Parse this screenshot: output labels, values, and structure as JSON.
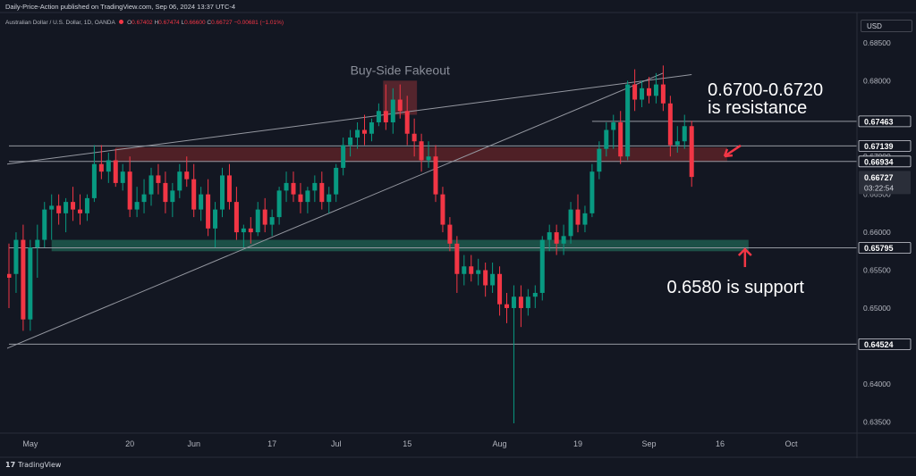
{
  "header": {
    "publish_line": "Daily-Price-Action published on TradingView.com, Sep 06, 2024 13:37 UTC-4"
  },
  "legend": {
    "symbol": "Australian Dollar / U.S. Dollar, 1D, OANDA",
    "open_label": "O",
    "open": "0.67402",
    "high_label": "H",
    "high": "0.67474",
    "low_label": "L",
    "low": "0.66600",
    "close_label": "C",
    "close": "0.66727",
    "change": "−0.00681 (−1.01%)"
  },
  "currency": "USD",
  "footer": {
    "brand": "TradingView"
  },
  "colors": {
    "background": "#131722",
    "up": "#089981",
    "down": "#f23645",
    "resistance_zone": "#5b2227",
    "support_zone": "#1f5b4e",
    "text": "#d1d4dc"
  },
  "chart_data": {
    "type": "candlestick",
    "y_axis": {
      "ylim": [
        0.6335,
        0.6864
      ],
      "ticks": [
        "0.68500",
        "0.68000",
        "0.67500",
        "0.67000",
        "0.66500",
        "0.66000",
        "0.65500",
        "0.65000",
        "0.64500",
        "0.64000",
        "0.63500"
      ],
      "tick_values": [
        0.685,
        0.68,
        0.675,
        0.67,
        0.665,
        0.66,
        0.655,
        0.65,
        0.645,
        0.64,
        0.635
      ]
    },
    "x_axis": {
      "labels": [
        {
          "label": "May",
          "index": 3
        },
        {
          "label": "20",
          "index": 17
        },
        {
          "label": "Jun",
          "index": 26
        },
        {
          "label": "17",
          "index": 37
        },
        {
          "label": "Jul",
          "index": 46
        },
        {
          "label": "15",
          "index": 56
        },
        {
          "label": "Aug",
          "index": 69
        },
        {
          "label": "19",
          "index": 80
        },
        {
          "label": "Sep",
          "index": 90
        },
        {
          "label": "16",
          "index": 100
        },
        {
          "label": "Oct",
          "index": 110
        }
      ]
    },
    "candles": [
      {
        "o": 0.6545,
        "h": 0.6585,
        "l": 0.65,
        "c": 0.654
      },
      {
        "o": 0.6545,
        "h": 0.66,
        "l": 0.652,
        "c": 0.659
      },
      {
        "o": 0.659,
        "h": 0.661,
        "l": 0.647,
        "c": 0.6485
      },
      {
        "o": 0.6485,
        "h": 0.659,
        "l": 0.647,
        "c": 0.658
      },
      {
        "o": 0.658,
        "h": 0.661,
        "l": 0.654,
        "c": 0.659
      },
      {
        "o": 0.659,
        "h": 0.664,
        "l": 0.658,
        "c": 0.663
      },
      {
        "o": 0.663,
        "h": 0.665,
        "l": 0.659,
        "c": 0.6635
      },
      {
        "o": 0.6635,
        "h": 0.665,
        "l": 0.661,
        "c": 0.6625
      },
      {
        "o": 0.6625,
        "h": 0.6645,
        "l": 0.66,
        "c": 0.664
      },
      {
        "o": 0.664,
        "h": 0.666,
        "l": 0.6615,
        "c": 0.663
      },
      {
        "o": 0.663,
        "h": 0.665,
        "l": 0.661,
        "c": 0.6625
      },
      {
        "o": 0.6625,
        "h": 0.665,
        "l": 0.6615,
        "c": 0.6645
      },
      {
        "o": 0.6645,
        "h": 0.6715,
        "l": 0.664,
        "c": 0.669
      },
      {
        "o": 0.669,
        "h": 0.6715,
        "l": 0.667,
        "c": 0.668
      },
      {
        "o": 0.668,
        "h": 0.6705,
        "l": 0.6665,
        "c": 0.6695
      },
      {
        "o": 0.6695,
        "h": 0.671,
        "l": 0.666,
        "c": 0.6665
      },
      {
        "o": 0.6665,
        "h": 0.669,
        "l": 0.6655,
        "c": 0.668
      },
      {
        "o": 0.668,
        "h": 0.67,
        "l": 0.662,
        "c": 0.663
      },
      {
        "o": 0.663,
        "h": 0.666,
        "l": 0.662,
        "c": 0.664
      },
      {
        "o": 0.664,
        "h": 0.667,
        "l": 0.6625,
        "c": 0.665
      },
      {
        "o": 0.665,
        "h": 0.6685,
        "l": 0.6635,
        "c": 0.6675
      },
      {
        "o": 0.6675,
        "h": 0.669,
        "l": 0.665,
        "c": 0.6665
      },
      {
        "o": 0.6665,
        "h": 0.668,
        "l": 0.6625,
        "c": 0.664
      },
      {
        "o": 0.664,
        "h": 0.6665,
        "l": 0.662,
        "c": 0.6655
      },
      {
        "o": 0.6655,
        "h": 0.669,
        "l": 0.6645,
        "c": 0.668
      },
      {
        "o": 0.668,
        "h": 0.67,
        "l": 0.666,
        "c": 0.667
      },
      {
        "o": 0.667,
        "h": 0.669,
        "l": 0.662,
        "c": 0.663
      },
      {
        "o": 0.663,
        "h": 0.666,
        "l": 0.6615,
        "c": 0.665
      },
      {
        "o": 0.665,
        "h": 0.667,
        "l": 0.6595,
        "c": 0.6605
      },
      {
        "o": 0.6605,
        "h": 0.664,
        "l": 0.658,
        "c": 0.663
      },
      {
        "o": 0.663,
        "h": 0.6685,
        "l": 0.662,
        "c": 0.6675
      },
      {
        "o": 0.6675,
        "h": 0.669,
        "l": 0.663,
        "c": 0.664
      },
      {
        "o": 0.664,
        "h": 0.666,
        "l": 0.659,
        "c": 0.66
      },
      {
        "o": 0.66,
        "h": 0.661,
        "l": 0.658,
        "c": 0.6605
      },
      {
        "o": 0.6605,
        "h": 0.662,
        "l": 0.6585,
        "c": 0.66
      },
      {
        "o": 0.66,
        "h": 0.664,
        "l": 0.6595,
        "c": 0.663
      },
      {
        "o": 0.663,
        "h": 0.6645,
        "l": 0.66,
        "c": 0.661
      },
      {
        "o": 0.661,
        "h": 0.663,
        "l": 0.6595,
        "c": 0.662
      },
      {
        "o": 0.662,
        "h": 0.666,
        "l": 0.661,
        "c": 0.6655
      },
      {
        "o": 0.6655,
        "h": 0.668,
        "l": 0.664,
        "c": 0.6665
      },
      {
        "o": 0.6665,
        "h": 0.668,
        "l": 0.664,
        "c": 0.665
      },
      {
        "o": 0.665,
        "h": 0.6665,
        "l": 0.6625,
        "c": 0.664
      },
      {
        "o": 0.664,
        "h": 0.666,
        "l": 0.6625,
        "c": 0.6655
      },
      {
        "o": 0.6655,
        "h": 0.6675,
        "l": 0.664,
        "c": 0.6665
      },
      {
        "o": 0.6665,
        "h": 0.668,
        "l": 0.663,
        "c": 0.664
      },
      {
        "o": 0.664,
        "h": 0.666,
        "l": 0.6625,
        "c": 0.665
      },
      {
        "o": 0.665,
        "h": 0.669,
        "l": 0.664,
        "c": 0.6685
      },
      {
        "o": 0.6685,
        "h": 0.6725,
        "l": 0.6675,
        "c": 0.6715
      },
      {
        "o": 0.6715,
        "h": 0.6735,
        "l": 0.67,
        "c": 0.6725
      },
      {
        "o": 0.6725,
        "h": 0.6745,
        "l": 0.671,
        "c": 0.6735
      },
      {
        "o": 0.6735,
        "h": 0.6755,
        "l": 0.6715,
        "c": 0.673
      },
      {
        "o": 0.673,
        "h": 0.675,
        "l": 0.672,
        "c": 0.6745
      },
      {
        "o": 0.6745,
        "h": 0.677,
        "l": 0.674,
        "c": 0.676
      },
      {
        "o": 0.676,
        "h": 0.6795,
        "l": 0.6735,
        "c": 0.6745
      },
      {
        "o": 0.6745,
        "h": 0.679,
        "l": 0.673,
        "c": 0.6775
      },
      {
        "o": 0.6775,
        "h": 0.6795,
        "l": 0.675,
        "c": 0.676
      },
      {
        "o": 0.676,
        "h": 0.678,
        "l": 0.6715,
        "c": 0.673
      },
      {
        "o": 0.673,
        "h": 0.675,
        "l": 0.67,
        "c": 0.672
      },
      {
        "o": 0.672,
        "h": 0.673,
        "l": 0.668,
        "c": 0.6695
      },
      {
        "o": 0.6695,
        "h": 0.672,
        "l": 0.6685,
        "c": 0.67
      },
      {
        "o": 0.67,
        "h": 0.6715,
        "l": 0.664,
        "c": 0.665
      },
      {
        "o": 0.665,
        "h": 0.666,
        "l": 0.66,
        "c": 0.661
      },
      {
        "o": 0.661,
        "h": 0.662,
        "l": 0.6575,
        "c": 0.6585
      },
      {
        "o": 0.6585,
        "h": 0.6595,
        "l": 0.652,
        "c": 0.6545
      },
      {
        "o": 0.6545,
        "h": 0.657,
        "l": 0.653,
        "c": 0.6555
      },
      {
        "o": 0.6555,
        "h": 0.657,
        "l": 0.6535,
        "c": 0.6545
      },
      {
        "o": 0.6545,
        "h": 0.6565,
        "l": 0.653,
        "c": 0.655
      },
      {
        "o": 0.655,
        "h": 0.656,
        "l": 0.6515,
        "c": 0.653
      },
      {
        "o": 0.653,
        "h": 0.656,
        "l": 0.652,
        "c": 0.6545
      },
      {
        "o": 0.6545,
        "h": 0.6555,
        "l": 0.649,
        "c": 0.6505
      },
      {
        "o": 0.6505,
        "h": 0.652,
        "l": 0.648,
        "c": 0.65
      },
      {
        "o": 0.65,
        "h": 0.653,
        "l": 0.6348,
        "c": 0.6515
      },
      {
        "o": 0.6515,
        "h": 0.653,
        "l": 0.6475,
        "c": 0.65
      },
      {
        "o": 0.65,
        "h": 0.6525,
        "l": 0.649,
        "c": 0.6515
      },
      {
        "o": 0.6515,
        "h": 0.653,
        "l": 0.65,
        "c": 0.652
      },
      {
        "o": 0.652,
        "h": 0.6595,
        "l": 0.651,
        "c": 0.659
      },
      {
        "o": 0.659,
        "h": 0.661,
        "l": 0.6575,
        "c": 0.66
      },
      {
        "o": 0.66,
        "h": 0.661,
        "l": 0.657,
        "c": 0.6585
      },
      {
        "o": 0.6585,
        "h": 0.661,
        "l": 0.657,
        "c": 0.6595
      },
      {
        "o": 0.6595,
        "h": 0.664,
        "l": 0.6585,
        "c": 0.663
      },
      {
        "o": 0.663,
        "h": 0.665,
        "l": 0.66,
        "c": 0.661
      },
      {
        "o": 0.661,
        "h": 0.6635,
        "l": 0.66,
        "c": 0.6625
      },
      {
        "o": 0.6625,
        "h": 0.669,
        "l": 0.662,
        "c": 0.668
      },
      {
        "o": 0.668,
        "h": 0.672,
        "l": 0.667,
        "c": 0.671
      },
      {
        "o": 0.671,
        "h": 0.6745,
        "l": 0.67,
        "c": 0.6735
      },
      {
        "o": 0.6735,
        "h": 0.6755,
        "l": 0.671,
        "c": 0.6745
      },
      {
        "o": 0.6745,
        "h": 0.676,
        "l": 0.669,
        "c": 0.67
      },
      {
        "o": 0.67,
        "h": 0.68,
        "l": 0.6695,
        "c": 0.6795
      },
      {
        "o": 0.6795,
        "h": 0.6815,
        "l": 0.676,
        "c": 0.6775
      },
      {
        "o": 0.6775,
        "h": 0.68,
        "l": 0.6765,
        "c": 0.679
      },
      {
        "o": 0.679,
        "h": 0.6805,
        "l": 0.677,
        "c": 0.678
      },
      {
        "o": 0.678,
        "h": 0.681,
        "l": 0.677,
        "c": 0.6795
      },
      {
        "o": 0.6795,
        "h": 0.682,
        "l": 0.676,
        "c": 0.677
      },
      {
        "o": 0.677,
        "h": 0.678,
        "l": 0.67,
        "c": 0.6715
      },
      {
        "o": 0.6715,
        "h": 0.674,
        "l": 0.6705,
        "c": 0.672
      },
      {
        "o": 0.672,
        "h": 0.6755,
        "l": 0.671,
        "c": 0.674
      },
      {
        "o": 0.674,
        "h": 0.6747,
        "l": 0.666,
        "c": 0.6673
      }
    ],
    "horizontal_levels": [
      {
        "value": 0.67463,
        "label": "0.67463",
        "from": 82
      },
      {
        "value": 0.67139,
        "label": "0.67139",
        "from": 0
      },
      {
        "value": 0.66934,
        "label": "0.66934",
        "from": 0
      },
      {
        "value": 0.65795,
        "label": "0.65795",
        "from": 0
      },
      {
        "value": 0.64524,
        "label": "0.64524",
        "from": 0
      }
    ],
    "price_label": {
      "value": 0.66727,
      "label": "0.66727",
      "countdown": "03:22:54"
    },
    "resistance_zone": {
      "from": 0,
      "to": 0.6712,
      "low": 0.6693,
      "x_end": 101
    },
    "support_zone": {
      "low": 0.6575,
      "high": 0.659,
      "x_start": 6,
      "x_end": 104
    },
    "fakeout_box": {
      "i0": 53,
      "i1": 57,
      "low": 0.6755,
      "high": 0.68,
      "label": "Buy-Side Fakeout"
    },
    "trendlines": [
      {
        "i0": -1,
        "v0": 0.6689,
        "i1": 96,
        "v1": 0.6808
      },
      {
        "i0": -1,
        "v0": 0.6444,
        "i1": 92,
        "v1": 0.681
      }
    ],
    "annotations": [
      {
        "label": "0.6700-0.6720",
        "line2": "is resistance",
        "at_index": 97,
        "value": 0.6783
      },
      {
        "label": "0.6580 is support",
        "at_index": 90,
        "value": 0.6528
      }
    ]
  }
}
